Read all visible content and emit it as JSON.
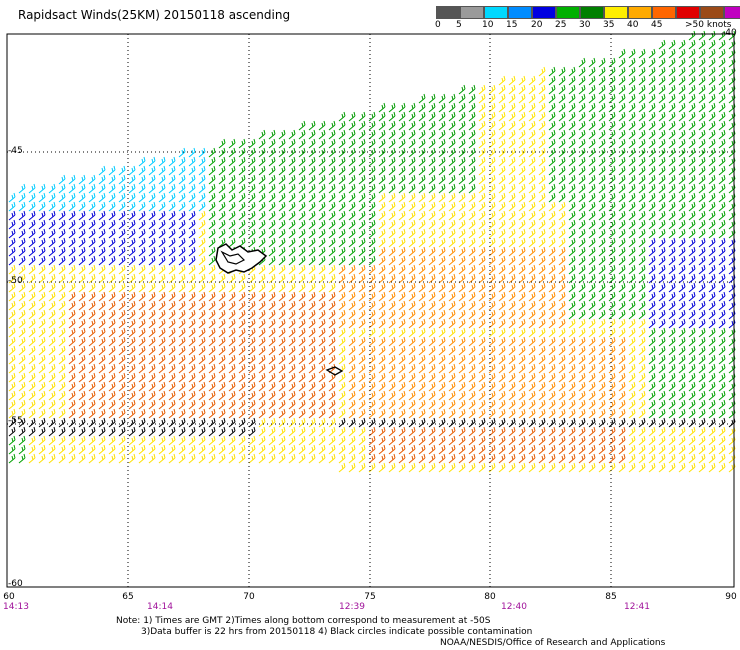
{
  "title": "Rapidsact Winds(25KM) 20150118 ascending",
  "legend": {
    "colors": [
      "#555555",
      "#9a9a9a",
      "#00d8ff",
      "#008cff",
      "#0000e0",
      "#00b000",
      "#008000",
      "#ffee00",
      "#ffaa00",
      "#ff6600",
      "#e00000",
      "#9b4a18",
      "#c000c0",
      "#6a00a0"
    ],
    "labels": [
      "0",
      "5",
      "10",
      "15",
      "20",
      "25",
      "30",
      "35",
      "40",
      "45",
      ">50 knots"
    ]
  },
  "axes": {
    "lat_labels": [
      "-40",
      "-45",
      "-50",
      "-55",
      "-60"
    ],
    "lon_labels": [
      "60",
      "65",
      "70",
      "75",
      "80",
      "85",
      "90"
    ],
    "time_labels": [
      "14:13",
      "14:14",
      "12:39",
      "12:40",
      "12:41"
    ],
    "time_color": "#a0129a"
  },
  "notes": {
    "line1": "Note: 1) Times are GMT 2)Times along bottom correspond to measurement at -50S",
    "line2": "3)Data buffer is 22 hrs from 20150118 4) Black circles indicate possible contamination",
    "credit": "NOAA/NESDIS/Office of Research and Applications"
  }
}
